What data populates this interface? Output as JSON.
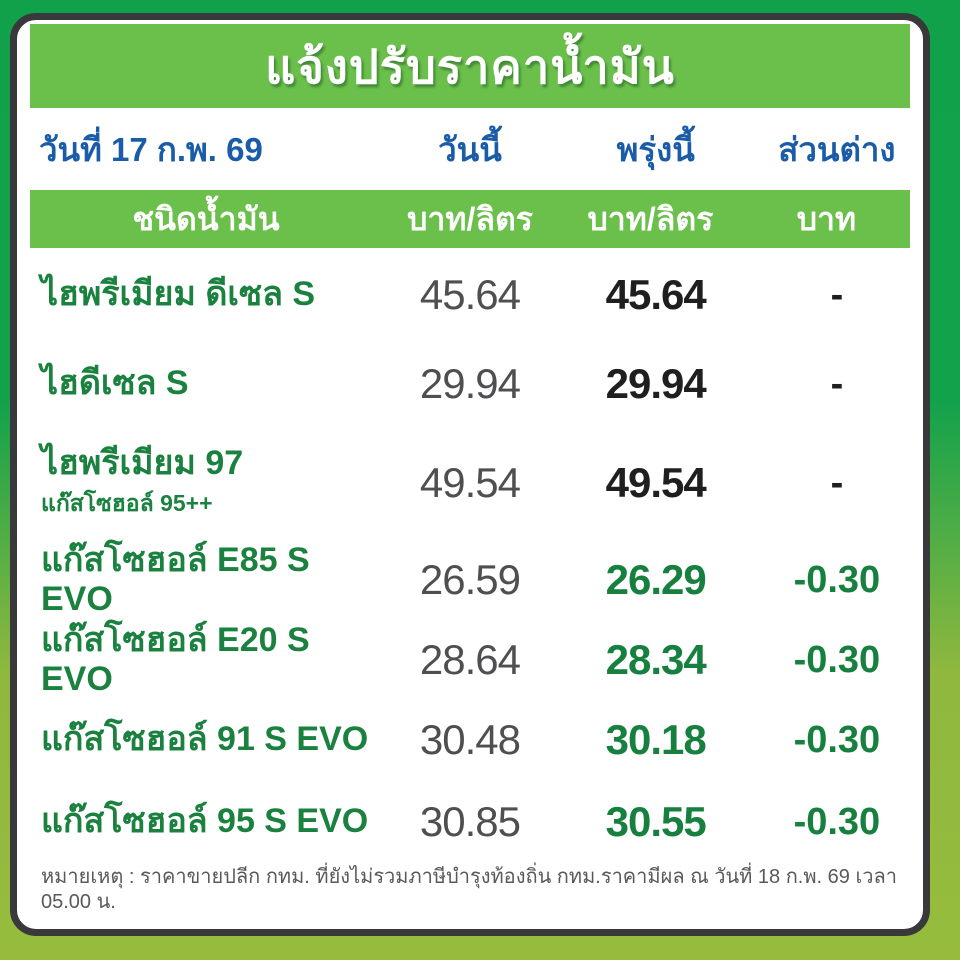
{
  "poster": {
    "title": "แจ้งปรับราคาน้ำมัน",
    "date": "วันที่ 17 ก.พ. 69",
    "columns": {
      "today": "วันนี้",
      "tomorrow": "พรุ่งนี้",
      "diff": "ส่วนต่าง"
    },
    "units": {
      "fuel": "ชนิดน้ำมัน",
      "today": "บาท/ลิตร",
      "tomorrow": "บาท/ลิตร",
      "diff": "บาท"
    },
    "note": "หมายเหตุ :  ราคาขายปลีก กทม. ที่ยังไม่รวมภาษีบำรุงท้องถิ่น  กทม.ราคามีผล ณ วันที่ 18 ก.พ. 69 เวลา 05.00 น."
  },
  "table": {
    "rows": [
      {
        "name": "ไฮพรีเมียม ดีเซล S",
        "today": "45.64",
        "tomorrow": "45.64",
        "diff": "-"
      },
      {
        "name": "ไฮดีเซล S",
        "today": "29.94",
        "tomorrow": "29.94",
        "diff": "-"
      },
      {
        "name": "ไฮพรีเมียม 97",
        "sub": "แก๊สโซฮอล์ 95++",
        "today": "49.54",
        "tomorrow": "49.54",
        "diff": "-"
      },
      {
        "name": "แก๊สโซฮอล์ E85 S EVO",
        "today": "26.59",
        "tomorrow": "26.29",
        "diff": "-0.30"
      },
      {
        "name": "แก๊สโซฮอล์ E20 S EVO",
        "today": "28.64",
        "tomorrow": "28.34",
        "diff": "-0.30"
      },
      {
        "name": "แก๊สโซฮอล์ 91 S EVO",
        "today": "30.48",
        "tomorrow": "30.18",
        "diff": "-0.30"
      },
      {
        "name": "แก๊สโซฮอล์ 95 S EVO",
        "today": "30.85",
        "tomorrow": "30.55",
        "diff": "-0.30"
      }
    ]
  },
  "chart_data": {
    "type": "table",
    "title": "แจ้งปรับราคาน้ำมัน",
    "columns": [
      "ชนิดน้ำมัน",
      "วันนี้ (บาท/ลิตร)",
      "พรุ่งนี้ (บาท/ลิตร)",
      "ส่วนต่าง (บาท)"
    ],
    "rows": [
      [
        "ไฮพรีเมียม ดีเซล S",
        45.64,
        45.64,
        "-"
      ],
      [
        "ไฮดีเซล S",
        29.94,
        29.94,
        "-"
      ],
      [
        "ไฮพรีเมียม 97 (แก๊สโซฮอล์ 95++)",
        49.54,
        49.54,
        "-"
      ],
      [
        "แก๊สโซฮอล์ E85 S EVO",
        26.59,
        26.29,
        -0.3
      ],
      [
        "แก๊สโซฮอล์ E20 S EVO",
        28.64,
        28.34,
        -0.3
      ],
      [
        "แก๊สโซฮอล์ 91 S EVO",
        30.48,
        30.18,
        -0.3
      ],
      [
        "แก๊สโซฮอล์ 95 S EVO",
        30.85,
        30.55,
        -0.3
      ]
    ]
  },
  "colors": {
    "background_top": "#12a14b",
    "background_bottom": "#97bc3d",
    "card_border": "#39393b",
    "banner_green": "#6bbf4b",
    "header_blue": "#1a5ca8",
    "fuel_green": "#1a813f",
    "changed_green": "#17803f",
    "today_gray": "#4f4f51",
    "price_black": "#1f1f1f",
    "note_gray": "#59595b"
  }
}
